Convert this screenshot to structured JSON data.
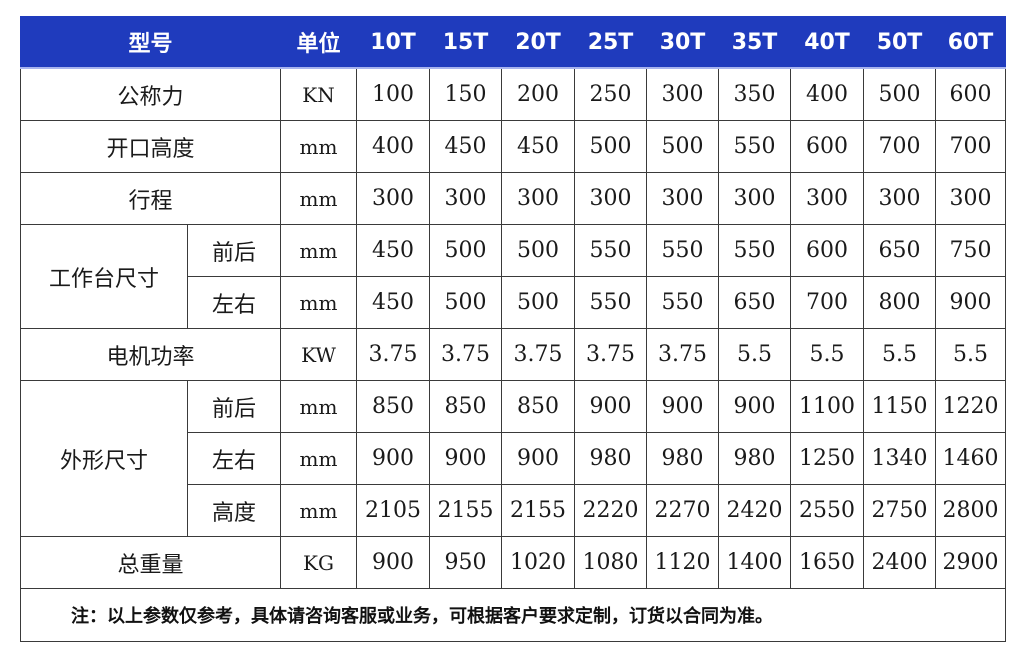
{
  "header": {
    "model_label": "型号",
    "unit_label": "单位",
    "models": [
      "10T",
      "15T",
      "20T",
      "25T",
      "30T",
      "35T",
      "40T",
      "50T",
      "60T"
    ]
  },
  "rows": {
    "force": {
      "label": "公称力",
      "unit": "KN",
      "values": [
        "100",
        "150",
        "200",
        "250",
        "300",
        "350",
        "400",
        "500",
        "600"
      ]
    },
    "opening": {
      "label": "开口高度",
      "unit": "mm",
      "values": [
        "400",
        "450",
        "450",
        "500",
        "500",
        "550",
        "600",
        "700",
        "700"
      ]
    },
    "stroke": {
      "label": "行程",
      "unit": "mm",
      "values": [
        "300",
        "300",
        "300",
        "300",
        "300",
        "300",
        "300",
        "300",
        "300"
      ]
    },
    "table_size": {
      "label": "工作台尺寸",
      "front_back": {
        "label": "前后",
        "unit": "mm",
        "values": [
          "450",
          "500",
          "500",
          "550",
          "550",
          "550",
          "600",
          "650",
          "750"
        ]
      },
      "left_right": {
        "label": "左右",
        "unit": "mm",
        "values": [
          "450",
          "500",
          "500",
          "550",
          "550",
          "650",
          "700",
          "800",
          "900"
        ]
      }
    },
    "motor_power": {
      "label": "电机功率",
      "unit": "KW",
      "values": [
        "3.75",
        "3.75",
        "3.75",
        "3.75",
        "3.75",
        "5.5",
        "5.5",
        "5.5",
        "5.5"
      ]
    },
    "outer_size": {
      "label": "外形尺寸",
      "front_back": {
        "label": "前后",
        "unit": "mm",
        "values": [
          "850",
          "850",
          "850",
          "900",
          "900",
          "900",
          "1100",
          "1150",
          "1220"
        ]
      },
      "left_right": {
        "label": "左右",
        "unit": "mm",
        "values": [
          "900",
          "900",
          "900",
          "980",
          "980",
          "980",
          "1250",
          "1340",
          "1460"
        ]
      },
      "height": {
        "label": "高度",
        "unit": "mm",
        "values": [
          "2105",
          "2155",
          "2155",
          "2220",
          "2270",
          "2420",
          "2550",
          "2750",
          "2800"
        ]
      }
    },
    "weight": {
      "label": "总重量",
      "unit": "KG",
      "values": [
        "900",
        "950",
        "1020",
        "1080",
        "1120",
        "1400",
        "1650",
        "2400",
        "2900"
      ]
    }
  },
  "note": "注：以上参数仅参考，具体请咨询客服或业务，可根据客户要求定制，订货以合同为准。",
  "colors": {
    "header_bg": "#1f3bbd",
    "header_text": "#ffffff",
    "border": "#3a3a3a"
  }
}
